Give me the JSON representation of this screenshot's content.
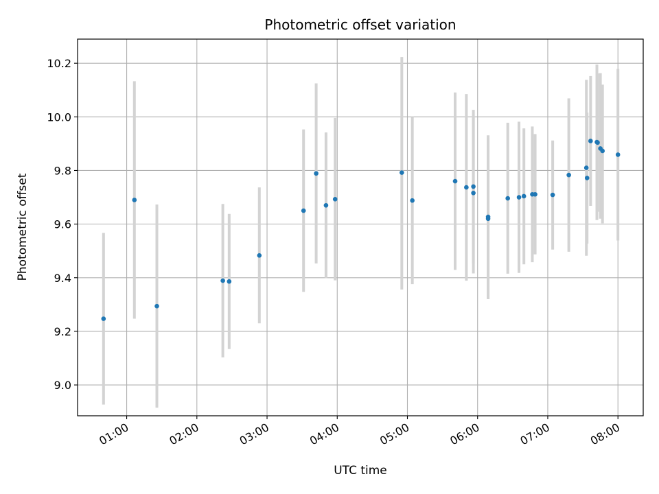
{
  "chart_data": {
    "type": "scatter",
    "title": "Photometric offset variation",
    "xlabel": "UTC time",
    "ylabel": "Photometric offset",
    "x_unit": "hours UTC",
    "xlim": [
      0.3,
      8.36
    ],
    "ylim": [
      8.885,
      10.29
    ],
    "grid": true,
    "colors": {
      "point": "#1f77b4",
      "errorbar": "#d3d3d3",
      "grid": "#b0b0b0"
    },
    "x_ticks": [
      {
        "value": 1,
        "label": "01:00"
      },
      {
        "value": 2,
        "label": "02:00"
      },
      {
        "value": 3,
        "label": "03:00"
      },
      {
        "value": 4,
        "label": "04:00"
      },
      {
        "value": 5,
        "label": "05:00"
      },
      {
        "value": 6,
        "label": "06:00"
      },
      {
        "value": 7,
        "label": "07:00"
      },
      {
        "value": 8,
        "label": "08:00"
      }
    ],
    "y_ticks": [
      {
        "value": 9.0,
        "label": "9.0"
      },
      {
        "value": 9.2,
        "label": "9.2"
      },
      {
        "value": 9.4,
        "label": "9.4"
      },
      {
        "value": 9.6,
        "label": "9.6"
      },
      {
        "value": 9.8,
        "label": "9.8"
      },
      {
        "value": 10.0,
        "label": "10.0"
      },
      {
        "value": 10.2,
        "label": "10.2"
      }
    ],
    "points": [
      {
        "x": 0.67,
        "y": 9.247,
        "lo": 8.927,
        "hi": 9.567
      },
      {
        "x": 1.11,
        "y": 9.69,
        "lo": 9.247,
        "hi": 10.133
      },
      {
        "x": 1.43,
        "y": 9.294,
        "lo": 8.915,
        "hi": 9.673
      },
      {
        "x": 2.37,
        "y": 9.389,
        "lo": 9.103,
        "hi": 9.675
      },
      {
        "x": 2.46,
        "y": 9.386,
        "lo": 9.134,
        "hi": 9.638
      },
      {
        "x": 2.89,
        "y": 9.483,
        "lo": 9.23,
        "hi": 9.737
      },
      {
        "x": 3.52,
        "y": 9.65,
        "lo": 9.347,
        "hi": 9.953
      },
      {
        "x": 3.7,
        "y": 9.789,
        "lo": 9.453,
        "hi": 10.125
      },
      {
        "x": 3.84,
        "y": 9.67,
        "lo": 9.398,
        "hi": 9.942
      },
      {
        "x": 3.97,
        "y": 9.693,
        "lo": 9.39,
        "hi": 9.996
      },
      {
        "x": 4.92,
        "y": 9.792,
        "lo": 9.356,
        "hi": 10.223
      },
      {
        "x": 5.07,
        "y": 9.688,
        "lo": 9.376,
        "hi": 10.0
      },
      {
        "x": 5.68,
        "y": 9.76,
        "lo": 9.429,
        "hi": 10.091
      },
      {
        "x": 5.84,
        "y": 9.737,
        "lo": 9.389,
        "hi": 10.085
      },
      {
        "x": 5.94,
        "y": 9.74,
        "lo": 9.454,
        "hi": 10.026
      },
      {
        "x": 5.94,
        "y": 9.716,
        "lo": 9.416,
        "hi": 9.996
      },
      {
        "x": 6.15,
        "y": 9.627,
        "lo": 9.323,
        "hi": 9.931
      },
      {
        "x": 6.15,
        "y": 9.62,
        "lo": 9.32,
        "hi": 9.92
      },
      {
        "x": 6.43,
        "y": 9.696,
        "lo": 9.415,
        "hi": 9.978
      },
      {
        "x": 6.59,
        "y": 9.7,
        "lo": 9.418,
        "hi": 9.982
      },
      {
        "x": 6.66,
        "y": 9.704,
        "lo": 9.45,
        "hi": 9.957
      },
      {
        "x": 6.78,
        "y": 9.711,
        "lo": 9.458,
        "hi": 9.964
      },
      {
        "x": 6.82,
        "y": 9.711,
        "lo": 9.487,
        "hi": 9.936
      },
      {
        "x": 7.07,
        "y": 9.709,
        "lo": 9.505,
        "hi": 9.912
      },
      {
        "x": 7.3,
        "y": 9.783,
        "lo": 9.497,
        "hi": 10.069
      },
      {
        "x": 7.55,
        "y": 9.81,
        "lo": 9.482,
        "hi": 10.138
      },
      {
        "x": 7.56,
        "y": 9.772,
        "lo": 9.527,
        "hi": 10.016
      },
      {
        "x": 7.61,
        "y": 9.91,
        "lo": 9.668,
        "hi": 10.152
      },
      {
        "x": 7.7,
        "y": 9.906,
        "lo": 9.615,
        "hi": 10.195
      },
      {
        "x": 7.71,
        "y": 9.904,
        "lo": 9.646,
        "hi": 10.162
      },
      {
        "x": 7.75,
        "y": 9.882,
        "lo": 9.62,
        "hi": 10.163
      },
      {
        "x": 7.78,
        "y": 9.873,
        "lo": 9.603,
        "hi": 10.12
      },
      {
        "x": 8.0,
        "y": 9.859,
        "lo": 9.539,
        "hi": 10.179
      }
    ]
  }
}
